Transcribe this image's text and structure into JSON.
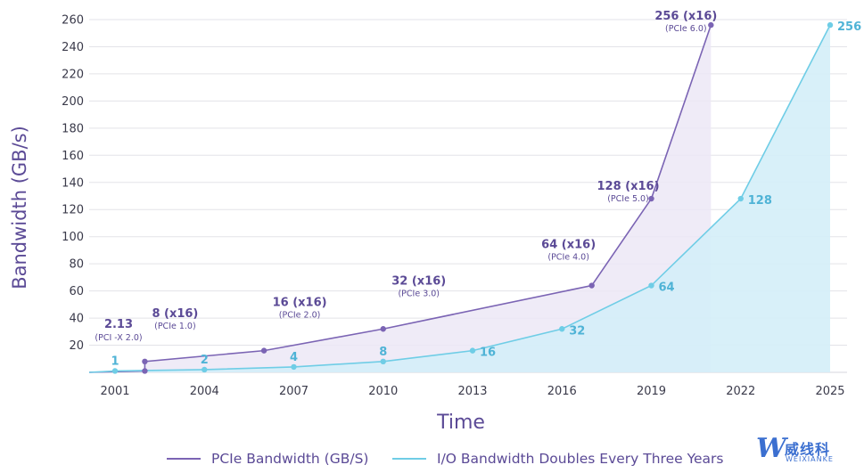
{
  "chart_data": {
    "type": "area",
    "title": "",
    "xlabel": "Time",
    "ylabel": "Bandwidth (GB/s)",
    "x_ticks": [
      "2001",
      "2004",
      "2007",
      "2010",
      "2013",
      "2016",
      "2019",
      "2022",
      "2025"
    ],
    "y_ticks": [
      "20",
      "40",
      "60",
      "80",
      "100",
      "120",
      "140",
      "160",
      "180",
      "200",
      "220",
      "240",
      "260"
    ],
    "xlim": [
      2000,
      2025.3
    ],
    "ylim": [
      0,
      260
    ],
    "legend_position": "bottom",
    "grid": "horizontal",
    "series": [
      {
        "name": "PCIe Bandwidth (GB/S)",
        "color": "#7b64b4",
        "fill": "#ece7f6",
        "points": [
          {
            "x": 2000,
            "y": 0
          },
          {
            "x": 2002,
            "y": 1,
            "marker": true
          },
          {
            "x": 2002,
            "y": 8,
            "marker": true,
            "value": "8 (x16)",
            "gen": "(PCIe 1.0)"
          },
          {
            "x": 2006,
            "y": 16,
            "marker": true,
            "value": "16 (x16)",
            "gen": "(PCIe 2.0)"
          },
          {
            "x": 2010,
            "y": 32,
            "marker": true,
            "value": "32 (x16)",
            "gen": "(PCIe 3.0)"
          },
          {
            "x": 2017,
            "y": 64,
            "marker": true,
            "value": "64 (x16)",
            "gen": "(PCIe 4.0)"
          },
          {
            "x": 2019,
            "y": 128,
            "marker": true,
            "value": "128 (x16)",
            "gen": "(PCIe 5.0)"
          },
          {
            "x": 2021,
            "y": 256,
            "marker": true,
            "value": "256 (x16)",
            "gen": "(PCIe 6.0)"
          }
        ],
        "extra_labels": [
          {
            "x": 2001,
            "y": 1,
            "value": "2.13",
            "gen": "(PCI -X 2.0)"
          }
        ]
      },
      {
        "name": "I/O Bandwidth Doubles Every Three Years",
        "color": "#6fcde6",
        "fill": "#d4eef8",
        "points": [
          {
            "x": 2000,
            "y": 0
          },
          {
            "x": 2001,
            "y": 1,
            "marker": true,
            "value": "1"
          },
          {
            "x": 2004,
            "y": 2,
            "marker": true,
            "value": "2"
          },
          {
            "x": 2007,
            "y": 4,
            "marker": true,
            "value": "4"
          },
          {
            "x": 2010,
            "y": 8,
            "marker": true,
            "value": "8"
          },
          {
            "x": 2013,
            "y": 16,
            "marker": true,
            "value": "16"
          },
          {
            "x": 2016,
            "y": 32,
            "marker": true,
            "value": "32"
          },
          {
            "x": 2019,
            "y": 64,
            "marker": true,
            "value": "64"
          },
          {
            "x": 2022,
            "y": 128,
            "marker": true,
            "value": "128"
          },
          {
            "x": 2025,
            "y": 256,
            "marker": true,
            "value": "256"
          }
        ]
      }
    ]
  },
  "legend": {
    "pcie_label": "PCIe Bandwidth (GB/S)",
    "io_label": "I/O Bandwidth Doubles Every Three Years"
  },
  "logo": {
    "chinese": "威线科",
    "english": "WEIXIANKE"
  }
}
